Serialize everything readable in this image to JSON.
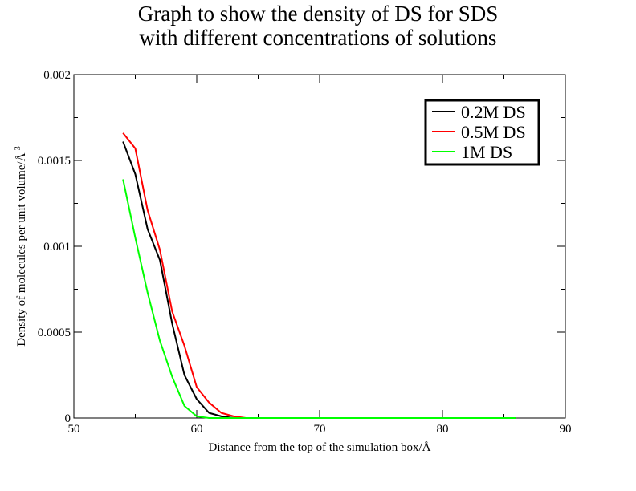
{
  "chart_data": {
    "type": "line",
    "title_line1": "Graph to show the density of DS for SDS",
    "title_line2": "with different concentrations of solutions",
    "xlabel": "Distance from the top of the simulation box/Å",
    "ylabel": "Density of molecules per unit volume/Å",
    "ylabel_sup": "-3",
    "xlim": [
      50,
      90
    ],
    "ylim": [
      0,
      0.002
    ],
    "x_ticks": [
      50,
      60,
      70,
      80,
      90
    ],
    "x_tick_labels": [
      "50",
      "60",
      "70",
      "80",
      "90"
    ],
    "y_ticks": [
      0,
      0.0005,
      0.001,
      0.0015,
      0.002
    ],
    "y_tick_labels": [
      "0",
      "0.0005",
      "0.001",
      "0.0015",
      "0.002"
    ],
    "grid": false,
    "legend_position": "top-right",
    "series": [
      {
        "name": "0.2M DS",
        "color": "#000000",
        "points": [
          [
            54,
            0.00161
          ],
          [
            55,
            0.00142
          ],
          [
            56,
            0.0011
          ],
          [
            57,
            0.00092
          ],
          [
            58,
            0.00055
          ],
          [
            59,
            0.00025
          ],
          [
            60,
            0.00011
          ],
          [
            61,
            3e-05
          ],
          [
            62,
            1e-05
          ],
          [
            63,
            0.0
          ],
          [
            64,
            0.0
          ],
          [
            70,
            0.0
          ],
          [
            80,
            0.0
          ],
          [
            86,
            0.0
          ]
        ]
      },
      {
        "name": "0.5M DS",
        "color": "#ff0000",
        "points": [
          [
            54,
            0.00166
          ],
          [
            55,
            0.00157
          ],
          [
            56,
            0.00121
          ],
          [
            57,
            0.00098
          ],
          [
            58,
            0.00062
          ],
          [
            59,
            0.00042
          ],
          [
            60,
            0.00018
          ],
          [
            61,
            9e-05
          ],
          [
            62,
            3e-05
          ],
          [
            63,
            1e-05
          ],
          [
            64,
            0.0
          ],
          [
            70,
            0.0
          ],
          [
            80,
            0.0
          ],
          [
            86,
            0.0
          ]
        ]
      },
      {
        "name": "1M DS",
        "color": "#00ff00",
        "points": [
          [
            54,
            0.00139
          ],
          [
            55,
            0.00105
          ],
          [
            56,
            0.00073
          ],
          [
            57,
            0.00045
          ],
          [
            58,
            0.00024
          ],
          [
            59,
            7e-05
          ],
          [
            60,
            1e-05
          ],
          [
            61,
            0.0
          ],
          [
            62,
            0.0
          ],
          [
            70,
            0.0
          ],
          [
            80,
            0.0
          ],
          [
            86,
            0.0
          ]
        ]
      }
    ]
  }
}
